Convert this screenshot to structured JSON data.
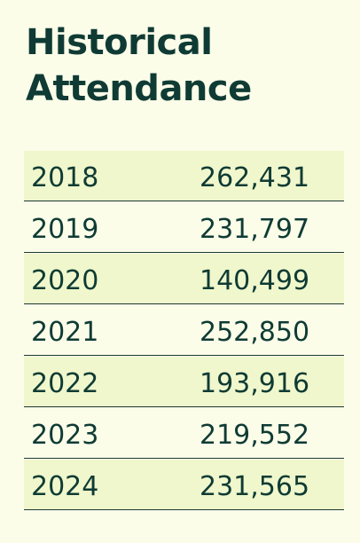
{
  "title": "Historical Attendance",
  "rows": [
    {
      "year": "2018",
      "attendance": "262,431"
    },
    {
      "year": "2019",
      "attendance": "231,797"
    },
    {
      "year": "2020",
      "attendance": "140,499"
    },
    {
      "year": "2021",
      "attendance": "252,850"
    },
    {
      "year": "2022",
      "attendance": "193,916"
    },
    {
      "year": "2023",
      "attendance": "219,552"
    },
    {
      "year": "2024",
      "attendance": "231,565"
    }
  ],
  "colors": {
    "background": "#fbfde9",
    "row_shade": "#f0f7cc",
    "text": "#0f3b34"
  }
}
